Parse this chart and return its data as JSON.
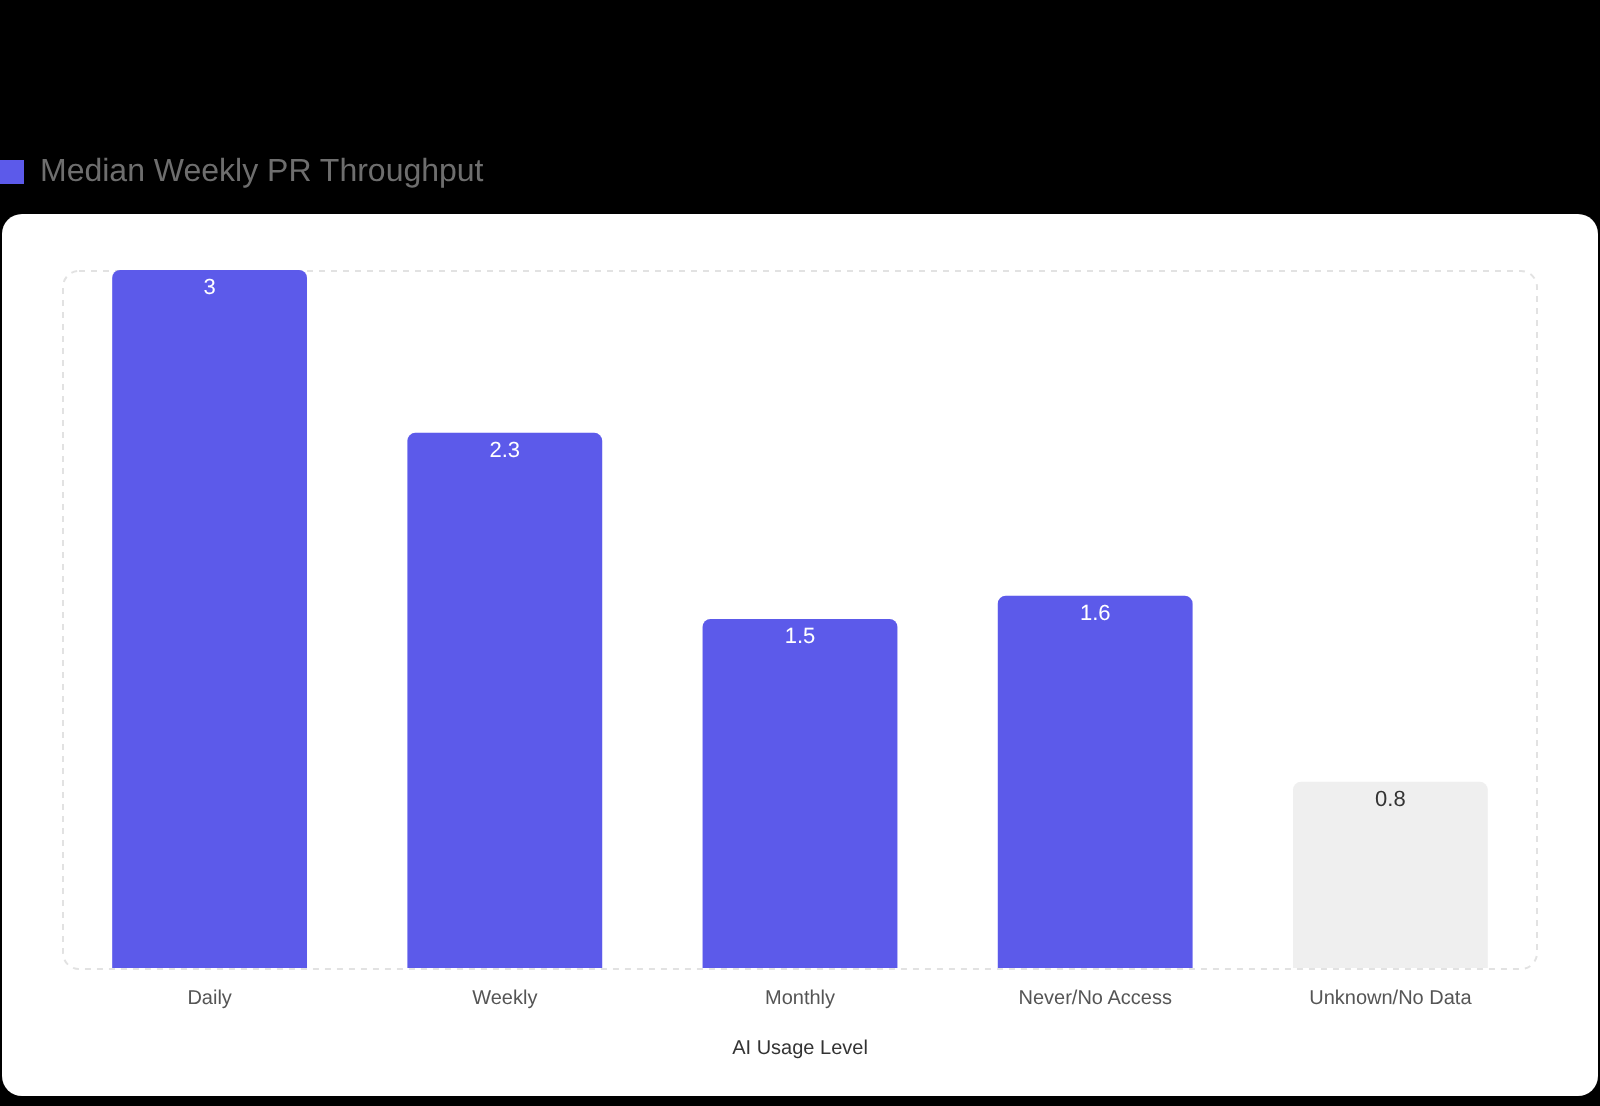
{
  "chart_data": {
    "type": "bar",
    "xlabel": "AI Usage Level",
    "categories": [
      "Daily",
      "Weekly",
      "Monthly",
      "Never/No Access",
      "Unknown/No Data"
    ],
    "series": [
      {
        "name": "Median Weekly PR Throughput",
        "color": "#5c5aea",
        "colors": [
          "#5c5aea",
          "#5c5aea",
          "#5c5aea",
          "#5c5aea",
          "#efefef"
        ],
        "values": [
          3,
          2.3,
          1.5,
          1.6,
          0.8
        ]
      }
    ],
    "ylim": [
      0,
      3
    ],
    "data_labels": true,
    "legend": "top left",
    "tick_labels": "x"
  }
}
